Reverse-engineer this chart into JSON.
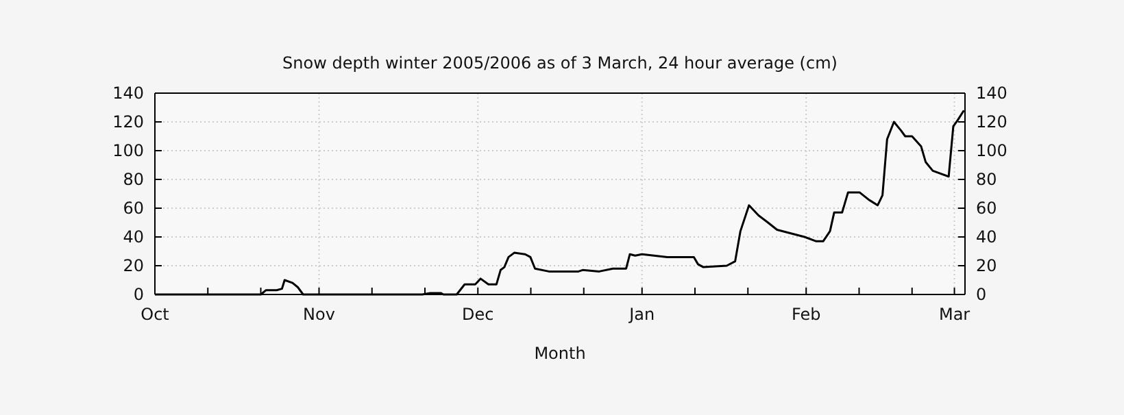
{
  "chart_data": {
    "type": "line",
    "title": "Snow depth winter 2005/2006 as of 3 March, 24 hour average (cm)",
    "xlabel": "Month",
    "x": [
      "2005-10-01",
      "2005-10-21",
      "2005-10-22",
      "2005-10-24",
      "2005-10-25",
      "2005-10-25T12:00",
      "2005-10-27",
      "2005-10-28",
      "2005-10-29",
      "2005-11-20T12:00",
      "2005-11-22",
      "2005-11-24",
      "2005-11-24T12:00",
      "2005-11-27",
      "2005-11-28T12:00",
      "2005-11-30T12:00",
      "2005-12-01T12:00",
      "2005-12-03",
      "2005-12-04T12:00",
      "2005-12-05T07:00",
      "2005-12-06",
      "2005-12-06T19:00",
      "2005-12-07T21:00",
      "2005-12-09T22:00",
      "2005-12-10T22:00",
      "2005-12-11T19:00",
      "2005-12-14T10:00",
      "2005-12-20",
      "2005-12-20T19:00",
      "2005-12-23T22:00",
      "2005-12-26T12:00",
      "2005-12-29",
      "2005-12-29T17:00",
      "2005-12-30T17:00",
      "2006-01-01",
      "2006-01-05T19:00",
      "2006-01-10T19:00",
      "2006-01-11T14:00",
      "2006-01-12T14:00",
      "2006-01-17",
      "2006-01-18T14:00",
      "2006-01-19T14:00",
      "2006-01-21T05:00",
      "2006-01-23",
      "2006-01-24T19:00",
      "2006-01-26T12:00",
      "2006-01-31T17:00",
      "2006-02-02T22:00",
      "2006-02-04T05:00",
      "2006-02-05T12:00",
      "2006-02-06T07:00",
      "2006-02-07T19:00",
      "2006-02-08T22:00",
      "2006-02-11T02:00",
      "2006-02-12T19:00",
      "2006-02-14T12:00",
      "2006-02-15T10:00",
      "2006-02-16T07:00",
      "2006-02-17T14:00",
      "2006-02-18T22:00",
      "2006-02-19T17:00",
      "2006-02-21",
      "2006-02-22T17:00",
      "2006-02-23T14:00",
      "2006-02-24T22:00",
      "2006-02-27T22:00",
      "2006-02-28T19:00",
      "2006-03-01T14:00",
      "2006-03-02T19:00"
    ],
    "series": [
      {
        "color": "#000000",
        "values": [
          0,
          0,
          3,
          3,
          4,
          10,
          8,
          5,
          0,
          0,
          1,
          1,
          0,
          0,
          7,
          7,
          11,
          7,
          7,
          17,
          19,
          26,
          29,
          28,
          26,
          18,
          16,
          16,
          17,
          16,
          18,
          18,
          28,
          27,
          28,
          26,
          26,
          21,
          19,
          20,
          23,
          44,
          62,
          55,
          50,
          45,
          40,
          37,
          37,
          44,
          57,
          57,
          71,
          71,
          66,
          62,
          69,
          108,
          120,
          114,
          110,
          110,
          103,
          92,
          86,
          82,
          117,
          121,
          128
        ]
      }
    ],
    "xlim": [
      "2005-10-01",
      "2006-03-03"
    ],
    "xticks": [
      {
        "value": "2005-10-01",
        "label": "Oct"
      },
      {
        "value": "2005-10-11",
        "label": null
      },
      {
        "value": "2005-10-21",
        "label": null
      },
      {
        "value": "2005-11-01",
        "label": "Nov"
      },
      {
        "value": "2005-11-11",
        "label": null
      },
      {
        "value": "2005-11-21",
        "label": null
      },
      {
        "value": "2005-12-01",
        "label": "Dec"
      },
      {
        "value": "2005-12-11",
        "label": null
      },
      {
        "value": "2005-12-21",
        "label": null
      },
      {
        "value": "2006-01-01",
        "label": "Jan"
      },
      {
        "value": "2006-01-11",
        "label": null
      },
      {
        "value": "2006-01-21",
        "label": null
      },
      {
        "value": "2006-02-01",
        "label": "Feb"
      },
      {
        "value": "2006-02-11",
        "label": null
      },
      {
        "value": "2006-02-21",
        "label": null
      },
      {
        "value": "2006-03-01",
        "label": "Mar"
      }
    ],
    "ylim": [
      0,
      140
    ],
    "yticks": [
      0,
      20,
      40,
      60,
      80,
      100,
      120,
      140
    ],
    "y2lim": [
      0,
      140
    ],
    "y2ticks": [
      0,
      20,
      40,
      60,
      80,
      100,
      120,
      140
    ],
    "grid": true,
    "line_style": "solid",
    "marker": "none"
  }
}
